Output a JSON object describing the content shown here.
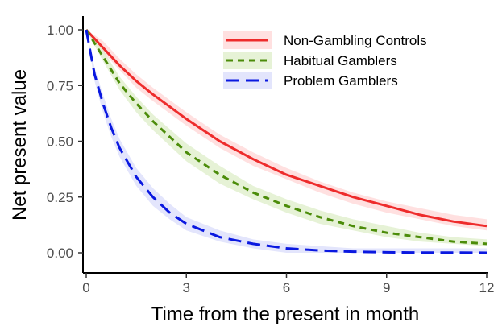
{
  "chart_data": {
    "type": "line",
    "xlabel": "Time from the present in month",
    "ylabel": "Net present value",
    "xlim": [
      0,
      12
    ],
    "ylim": [
      0,
      1
    ],
    "x_ticks": [
      "0",
      "3",
      "6",
      "9",
      "12"
    ],
    "y_ticks": [
      "0.00",
      "0.25",
      "0.50",
      "0.75",
      "1.00"
    ],
    "grid": false,
    "legend_position": "top-right",
    "series": [
      {
        "name": "Non-Gambling Controls",
        "color": "#ee2c2c",
        "band_color": "#ffd6d6",
        "dash": "solid",
        "x": [
          0,
          0.5,
          1,
          1.5,
          2,
          3,
          4,
          5,
          6,
          7,
          8,
          9,
          10,
          11,
          12
        ],
        "values": [
          1.0,
          0.92,
          0.84,
          0.77,
          0.71,
          0.6,
          0.5,
          0.42,
          0.35,
          0.3,
          0.25,
          0.21,
          0.17,
          0.14,
          0.12
        ],
        "lower": [
          1.0,
          0.9,
          0.82,
          0.74,
          0.68,
          0.57,
          0.47,
          0.39,
          0.33,
          0.27,
          0.22,
          0.18,
          0.15,
          0.12,
          0.1
        ],
        "upper": [
          1.0,
          0.95,
          0.87,
          0.8,
          0.74,
          0.63,
          0.53,
          0.45,
          0.38,
          0.32,
          0.27,
          0.23,
          0.2,
          0.17,
          0.15
        ]
      },
      {
        "name": "Habitual Gamblers",
        "color": "#4c8c0a",
        "band_color": "#deedc8",
        "dash": "short-dash",
        "x": [
          0,
          0.5,
          1,
          1.5,
          2,
          3,
          4,
          5,
          6,
          7,
          8,
          9,
          10,
          11,
          12
        ],
        "values": [
          1.0,
          0.88,
          0.76,
          0.67,
          0.59,
          0.45,
          0.35,
          0.27,
          0.21,
          0.16,
          0.12,
          0.09,
          0.07,
          0.05,
          0.04
        ],
        "lower": [
          1.0,
          0.86,
          0.73,
          0.63,
          0.55,
          0.41,
          0.31,
          0.24,
          0.18,
          0.13,
          0.1,
          0.07,
          0.05,
          0.04,
          0.03
        ],
        "upper": [
          1.0,
          0.91,
          0.79,
          0.7,
          0.62,
          0.49,
          0.39,
          0.3,
          0.24,
          0.19,
          0.15,
          0.12,
          0.09,
          0.07,
          0.06
        ]
      },
      {
        "name": "Problem Gamblers",
        "color": "#0a18e0",
        "band_color": "#dadcfb",
        "dash": "long-dash",
        "x": [
          0,
          0.25,
          0.5,
          0.75,
          1,
          1.5,
          2,
          2.5,
          3,
          4,
          5,
          6,
          7,
          8,
          9,
          10,
          11,
          12
        ],
        "values": [
          1.0,
          0.8,
          0.67,
          0.56,
          0.47,
          0.34,
          0.25,
          0.18,
          0.13,
          0.07,
          0.04,
          0.02,
          0.01,
          0.005,
          0.002,
          0.001,
          0.001,
          0.0
        ],
        "lower": [
          1.0,
          0.77,
          0.63,
          0.52,
          0.43,
          0.3,
          0.21,
          0.15,
          0.1,
          0.05,
          0.02,
          0.0,
          0.0,
          0.0,
          0.0,
          0.0,
          0.0,
          0.0
        ],
        "upper": [
          1.0,
          0.83,
          0.71,
          0.6,
          0.51,
          0.38,
          0.29,
          0.22,
          0.16,
          0.1,
          0.06,
          0.04,
          0.03,
          0.02,
          0.02,
          0.02,
          0.02,
          0.02
        ]
      }
    ]
  }
}
